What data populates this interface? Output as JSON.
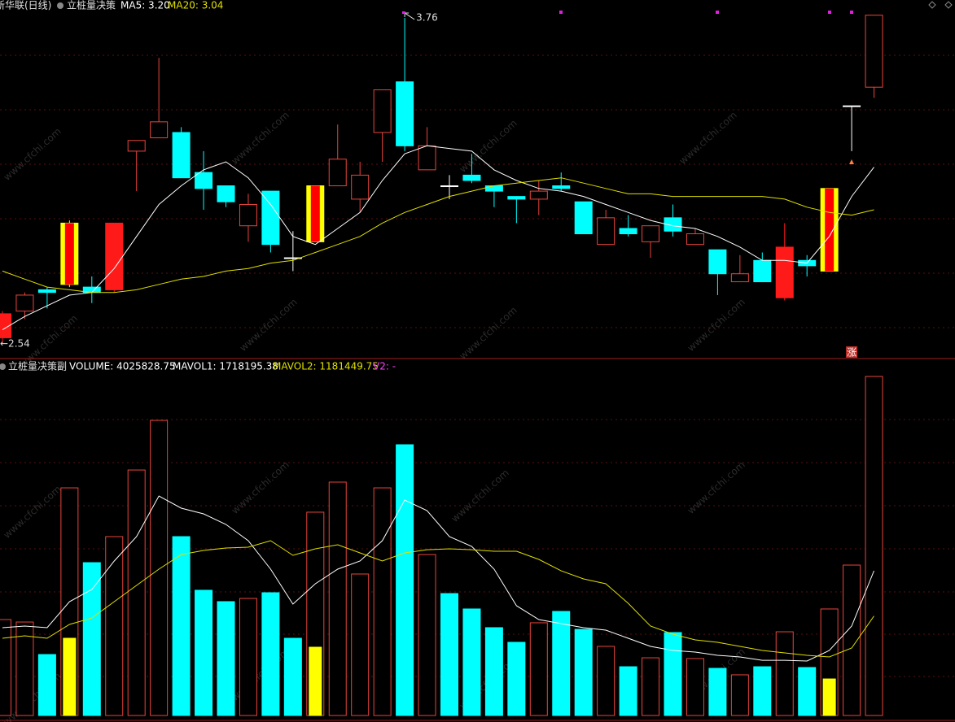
{
  "chart_data": [
    {
      "type": "candlestick",
      "title": "新华联(日线)",
      "subtitle": "立桩量决策",
      "ylim": [
        2.485,
        3.827
      ],
      "hollow_color": "#e8453c",
      "signal_color": "#ffff00",
      "stripe_color": "#ff0000",
      "colors": [
        "#ff1a1a",
        "#e8453c",
        "#00ffff",
        "#ffff00",
        "#00ffff",
        "#ff1a1a",
        "#e8453c",
        "#e8453c",
        "#00ffff",
        "#00ffff",
        "#00ffff",
        "#e8453c",
        "#00ffff",
        "#ffffff",
        "#ffff00",
        "#e8453c",
        "#e8453c",
        "#e8453c",
        "#00ffff",
        "#e8453c",
        "#ffffff",
        "#00ffff",
        "#00ffff",
        "#00ffff",
        "#e8453c",
        "#00ffff",
        "#00ffff",
        "#e8453c",
        "#00ffff",
        "#e8453c",
        "#00ffff",
        "#e8453c",
        "#00ffff",
        "#e8453c",
        "#00ffff",
        "#ff1a1a",
        "#00ffff",
        "#ffff00",
        "#ffffff",
        "#e8453c"
      ],
      "open": [
        2.56,
        2.66,
        2.74,
        2.76,
        2.75,
        2.74,
        3.26,
        3.31,
        3.33,
        3.18,
        3.13,
        2.98,
        3.11,
        2.86,
        2.92,
        3.13,
        3.08,
        3.33,
        3.52,
        3.19,
        3.13,
        3.17,
        3.13,
        3.09,
        3.08,
        3.13,
        3.07,
        2.91,
        2.97,
        2.92,
        3.01,
        2.91,
        2.89,
        2.77,
        2.85,
        2.71,
        2.85,
        2.81,
        3.43,
        3.5
      ],
      "high": [
        2.66,
        2.73,
        2.75,
        3.0,
        2.79,
        2.99,
        3.3,
        3.61,
        3.35,
        3.26,
        3.13,
        3.1,
        3.11,
        2.96,
        3.13,
        3.36,
        3.22,
        3.49,
        3.76,
        3.35,
        3.17,
        3.25,
        3.13,
        3.09,
        3.15,
        3.18,
        3.07,
        3.04,
        3.02,
        2.98,
        3.06,
        2.97,
        2.89,
        2.87,
        2.88,
        2.99,
        2.87,
        3.12,
        3.43,
        3.77
      ],
      "low": [
        2.54,
        2.63,
        2.67,
        2.75,
        2.69,
        2.73,
        3.11,
        3.31,
        3.16,
        3.04,
        3.05,
        2.92,
        2.88,
        2.81,
        2.92,
        3.13,
        3.03,
        3.22,
        3.26,
        3.19,
        3.08,
        3.14,
        3.05,
        2.99,
        3.02,
        3.11,
        2.95,
        2.91,
        2.94,
        2.86,
        2.94,
        2.91,
        2.72,
        2.77,
        2.77,
        2.7,
        2.79,
        2.81,
        3.26,
        3.46
      ],
      "close": [
        2.65,
        2.72,
        2.73,
        2.99,
        2.73,
        2.99,
        3.3,
        3.37,
        3.16,
        3.12,
        3.07,
        3.06,
        2.91,
        2.86,
        3.13,
        3.23,
        3.17,
        3.49,
        3.28,
        3.28,
        3.13,
        3.15,
        3.11,
        3.08,
        3.11,
        3.12,
        2.95,
        3.01,
        2.95,
        2.98,
        2.96,
        2.95,
        2.8,
        2.8,
        2.77,
        2.9,
        2.83,
        3.12,
        3.43,
        3.77
      ],
      "series": [
        {
          "name": "MA5: 3.20",
          "color": "#ffffff",
          "values": [
            2.59,
            2.64,
            2.68,
            2.72,
            2.73,
            2.82,
            2.94,
            3.06,
            3.13,
            3.19,
            3.22,
            3.16,
            3.06,
            2.94,
            2.91,
            2.97,
            3.03,
            3.15,
            3.25,
            3.28,
            3.27,
            3.26,
            3.19,
            3.15,
            3.12,
            3.11,
            3.09,
            3.06,
            3.03,
            3.0,
            2.98,
            2.97,
            2.94,
            2.9,
            2.85,
            2.85,
            2.84,
            2.94,
            3.09,
            3.2
          ]
        },
        {
          "name": "MA20: 3.04",
          "color": "#e0e000",
          "values": [
            2.81,
            2.78,
            2.75,
            2.74,
            2.73,
            2.73,
            2.74,
            2.76,
            2.78,
            2.79,
            2.81,
            2.82,
            2.84,
            2.85,
            2.88,
            2.91,
            2.94,
            2.99,
            3.03,
            3.06,
            3.09,
            3.11,
            3.13,
            3.14,
            3.15,
            3.16,
            3.14,
            3.12,
            3.1,
            3.1,
            3.09,
            3.09,
            3.09,
            3.09,
            3.09,
            3.08,
            3.05,
            3.03,
            3.02,
            3.04
          ]
        }
      ],
      "annotations": [
        {
          "text": "3.76",
          "index": 18,
          "value": 3.76
        },
        {
          "text": "←2.54",
          "index": 0,
          "value": 2.54
        }
      ],
      "badge": {
        "text": "涨",
        "index": 38,
        "color": "#c0302a"
      }
    },
    {
      "type": "bar",
      "title": "立桩量决策副",
      "ylim": [
        0,
        4219000
      ],
      "cyan_color": "#00ffff",
      "hollow_color": "#e8453c",
      "hollow": [
        true,
        true,
        false,
        true,
        false,
        true,
        true,
        true,
        false,
        false,
        false,
        true,
        false,
        false,
        true,
        true,
        true,
        true,
        false,
        true,
        false,
        false,
        false,
        false,
        true,
        false,
        false,
        true,
        false,
        true,
        false,
        true,
        false,
        true,
        false,
        true,
        false,
        true,
        true,
        true
      ],
      "series": [
        {
          "name": "VOLUME: 4025828.75",
          "color": "#ffffff",
          "kind": "bar",
          "values": [
            1139000,
            1110000,
            724000,
            2703000,
            1815000,
            2124000,
            2915000,
            3504000,
            2124000,
            1487000,
            1352000,
            1390000,
            1458000,
            917000,
            2414000,
            2771000,
            1680000,
            2703000,
            3215000,
            1911000,
            1448000,
            1265000,
            1043000,
            869000,
            1101000,
            1236000,
            1023000,
            821000,
            579000,
            685000,
            985000,
            676000,
            560000,
            483000,
            579000,
            994000,
            570000,
            1265000,
            1786000,
            4025828.75
          ]
        },
        {
          "name": "MAVOL1: 1718195.38",
          "color": "#ffffff",
          "kind": "line",
          "values": [
            1043000,
            1062000,
            1043000,
            1352000,
            1496000,
            1834000,
            2124000,
            2607000,
            2462000,
            2394000,
            2269000,
            2076000,
            1738000,
            1323000,
            1564000,
            1738000,
            1834000,
            2076000,
            2558000,
            2433000,
            2124000,
            2008000,
            1738000,
            1303000,
            1139000,
            1091000,
            1043000,
            1014000,
            917000,
            821000,
            772000,
            753000,
            714000,
            695000,
            656000,
            656000,
            647000,
            772000,
            1062000,
            1718195.38
          ]
        },
        {
          "name": "MAVOL2: 1181449.75",
          "color": "#e0e000",
          "kind": "line",
          "values": [
            917000,
            946000,
            917000,
            1081000,
            1158000,
            1352000,
            1545000,
            1738000,
            1911000,
            1960000,
            1989000,
            1998000,
            2076000,
            1902000,
            1979000,
            2027000,
            1931000,
            1834000,
            1931000,
            1969000,
            1979000,
            1969000,
            1950000,
            1950000,
            1854000,
            1718000,
            1622000,
            1564000,
            1332000,
            1062000,
            965000,
            898000,
            869000,
            821000,
            772000,
            743000,
            714000,
            695000,
            801000,
            1181449.75
          ]
        },
        {
          "name": "V2: -",
          "color": "#ff40ff",
          "kind": "line",
          "values": [
            null,
            null,
            null,
            null,
            null,
            null,
            null,
            null,
            null,
            null,
            null,
            null,
            null,
            null,
            null,
            null,
            null,
            null,
            null,
            null,
            null,
            null,
            null,
            null,
            null,
            null,
            null,
            null,
            null,
            null,
            null,
            null,
            null,
            null,
            null,
            null,
            null,
            null,
            null,
            null
          ]
        },
        {
          "color": "#ffff00",
          "kind": "bar",
          "values": [
            null,
            null,
            null,
            917000,
            null,
            null,
            null,
            null,
            null,
            null,
            null,
            null,
            null,
            null,
            811000,
            null,
            null,
            null,
            null,
            null,
            null,
            null,
            null,
            null,
            null,
            null,
            null,
            null,
            null,
            null,
            null,
            null,
            null,
            null,
            null,
            null,
            null,
            434000,
            null,
            null
          ]
        }
      ]
    }
  ],
  "watermark": "www.cfchi.com"
}
